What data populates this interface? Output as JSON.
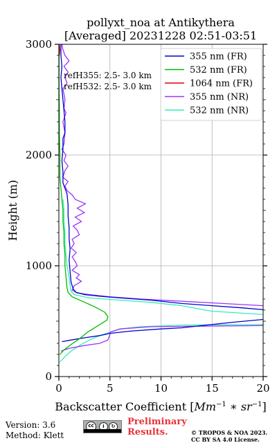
{
  "chart_data": {
    "type": "line",
    "title": "pollyxt_noa at Antikythera",
    "subtitle": "[Averaged] 20231228 02:51-03:51",
    "xlabel": "Backscatter Coefficient [Mm^-1 * sr^-1]",
    "ylabel": "Height (m)",
    "xlim": [
      0,
      20
    ],
    "ylim": [
      0,
      3000
    ],
    "xticks": [
      0,
      5,
      10,
      15,
      20
    ],
    "yticks": [
      0,
      1000,
      2000,
      3000
    ],
    "grid": true,
    "legend_position": "top-right",
    "annotations": [
      "refH355:  2.5- 3.0 km",
      "refH532:  2.5- 3.0 km"
    ],
    "series": [
      {
        "name": "355 nm (FR)",
        "color": "#0000cc",
        "points": [
          [
            20.5,
            520
          ],
          [
            17,
            490
          ],
          [
            14,
            460
          ],
          [
            12,
            440
          ],
          [
            10,
            430
          ],
          [
            7,
            410
          ],
          [
            5,
            390
          ],
          [
            4,
            370
          ],
          [
            2.5,
            350
          ],
          [
            1.2,
            330
          ],
          [
            0.3,
            315
          ],
          [
            0.3,
            315
          ]
        ]
      },
      {
        "name": "532 nm (FR)",
        "color": "#00bb00",
        "points": [
          [
            0.1,
            200
          ],
          [
            0.5,
            240
          ],
          [
            1.2,
            290
          ],
          [
            2,
            340
          ],
          [
            2.8,
            400
          ],
          [
            3.5,
            440
          ],
          [
            4.2,
            480
          ],
          [
            4.7,
            510
          ],
          [
            4.8,
            540
          ],
          [
            4.5,
            580
          ],
          [
            3.5,
            630
          ],
          [
            2.3,
            680
          ],
          [
            1.3,
            720
          ],
          [
            0.9,
            760
          ],
          [
            0.8,
            800
          ],
          [
            0.7,
            900
          ],
          [
            0.6,
            1000
          ],
          [
            0.6,
            1100
          ],
          [
            0.5,
            1200
          ],
          [
            0.5,
            1300
          ],
          [
            0.4,
            1400
          ],
          [
            0.4,
            1500
          ],
          [
            0.3,
            1600
          ],
          [
            0.2,
            1700
          ],
          [
            0.1,
            1800
          ],
          [
            0.1,
            2000
          ],
          [
            0.05,
            2200
          ],
          [
            0.05,
            2400
          ],
          [
            0.02,
            2600
          ],
          [
            0.02,
            2800
          ],
          [
            0.02,
            3000
          ]
        ]
      },
      {
        "name": "1064 nm (FR)",
        "color": "#dd0000",
        "points": [
          [
            0.05,
            2900
          ],
          [
            0.1,
            2950
          ],
          [
            0.05,
            3000
          ]
        ]
      },
      {
        "name": "355 nm (NR)",
        "color": "#9933ff",
        "points": [
          [
            20,
            460
          ],
          [
            14,
            455
          ],
          [
            9,
            450
          ],
          [
            6,
            430
          ],
          [
            5,
            400
          ],
          [
            5,
            380
          ],
          [
            4.8,
            330
          ],
          [
            4,
            300
          ],
          [
            2.5,
            280
          ],
          [
            1,
            255
          ],
          [
            0.2,
            230
          ],
          [
            0.2,
            230
          ]
        ]
      },
      {
        "name": "532 nm (NR)",
        "color": "#33eebb",
        "points": [
          [
            20,
            470
          ],
          [
            12,
            465
          ],
          [
            8,
            450
          ],
          [
            6,
            430
          ],
          [
            5,
            400
          ],
          [
            4,
            370
          ],
          [
            3,
            330
          ],
          [
            2,
            280
          ],
          [
            1.2,
            230
          ],
          [
            0.6,
            180
          ],
          [
            0.1,
            130
          ],
          [
            0.1,
            130
          ]
        ]
      }
    ],
    "upper_profiles": {
      "355_FR": [
        [
          20.5,
          600
        ],
        [
          18,
          620
        ],
        [
          15,
          640
        ],
        [
          12,
          660
        ],
        [
          9,
          690
        ],
        [
          6,
          710
        ],
        [
          4,
          725
        ],
        [
          2.5,
          740
        ],
        [
          1.7,
          760
        ],
        [
          1.4,
          790
        ],
        [
          1.2,
          850
        ],
        [
          1.1,
          950
        ],
        [
          1.0,
          1050
        ],
        [
          1.1,
          1150
        ],
        [
          1.0,
          1250
        ],
        [
          1.0,
          1350
        ],
        [
          0.9,
          1450
        ],
        [
          0.9,
          1550
        ],
        [
          0.8,
          1650
        ],
        [
          0.6,
          1700
        ],
        [
          0.4,
          1750
        ],
        [
          0.4,
          1850
        ],
        [
          0.3,
          1950
        ],
        [
          0.4,
          2050
        ],
        [
          0.4,
          2150
        ],
        [
          0.6,
          2200
        ],
        [
          0.6,
          2250
        ],
        [
          0.6,
          2300
        ],
        [
          0.5,
          2400
        ],
        [
          0.4,
          2500
        ],
        [
          0.3,
          2600
        ],
        [
          0.2,
          2700
        ],
        [
          0.3,
          2800
        ],
        [
          0.2,
          2900
        ],
        [
          0.2,
          3000
        ]
      ],
      "532_NR": [
        [
          20,
          560
        ],
        [
          15,
          590
        ],
        [
          12,
          640
        ],
        [
          9,
          670
        ],
        [
          6,
          690
        ],
        [
          3,
          710
        ],
        [
          1.5,
          740
        ],
        [
          1.2,
          770
        ],
        [
          1.1,
          820
        ],
        [
          1.0,
          900
        ],
        [
          0.8,
          1000
        ],
        [
          0.7,
          1100
        ],
        [
          0.6,
          1200
        ],
        [
          0.6,
          1300
        ],
        [
          0.5,
          1400
        ],
        [
          0.5,
          1500
        ],
        [
          0.4,
          1600
        ]
      ],
      "355_NR": [
        [
          20,
          640
        ],
        [
          16,
          660
        ],
        [
          12,
          680
        ],
        [
          8,
          700
        ],
        [
          5,
          720
        ],
        [
          3,
          740
        ],
        [
          1.8,
          755
        ],
        [
          1.3,
          780
        ],
        [
          1.5,
          820
        ],
        [
          2.2,
          860
        ],
        [
          1.7,
          890
        ],
        [
          2.0,
          920
        ],
        [
          1.3,
          960
        ],
        [
          1.8,
          1000
        ],
        [
          1.6,
          1040
        ],
        [
          1.3,
          1080
        ],
        [
          1.7,
          1120
        ],
        [
          1.2,
          1160
        ],
        [
          1.5,
          1200
        ],
        [
          1.3,
          1240
        ],
        [
          2.0,
          1280
        ],
        [
          1.8,
          1320
        ],
        [
          1.4,
          1360
        ],
        [
          2.2,
          1400
        ],
        [
          1.6,
          1440
        ],
        [
          2.5,
          1480
        ],
        [
          1.8,
          1520
        ],
        [
          2.6,
          1560
        ],
        [
          1.6,
          1600
        ],
        [
          1.3,
          1640
        ],
        [
          0.8,
          1680
        ],
        [
          0.6,
          1720
        ],
        [
          0.9,
          1760
        ],
        [
          0.4,
          1800
        ],
        [
          0.6,
          1860
        ],
        [
          0.9,
          1900
        ],
        [
          0.5,
          1950
        ],
        [
          0.7,
          2000
        ],
        [
          0.3,
          2050
        ],
        [
          0.5,
          2100
        ],
        [
          0.6,
          2200
        ],
        [
          0.4,
          2300
        ],
        [
          0.7,
          2380
        ],
        [
          0.5,
          2420
        ],
        [
          0.6,
          2500
        ],
        [
          0.4,
          2600
        ],
        [
          0.8,
          2650
        ],
        [
          0.6,
          2700
        ],
        [
          0.9,
          2750
        ],
        [
          0.5,
          2800
        ],
        [
          1.0,
          2850
        ],
        [
          0.6,
          2900
        ],
        [
          0.4,
          2950
        ],
        [
          0.3,
          3000
        ]
      ]
    }
  },
  "footer": {
    "version": "Version: 3.6",
    "method": "Method: Klett",
    "preliminary_line1": "Preliminary",
    "preliminary_line2": "Results.",
    "copyright_line1": "© TROPOS & NOA 2023.",
    "copyright_line2": "CC BY SA 4.0 License."
  }
}
